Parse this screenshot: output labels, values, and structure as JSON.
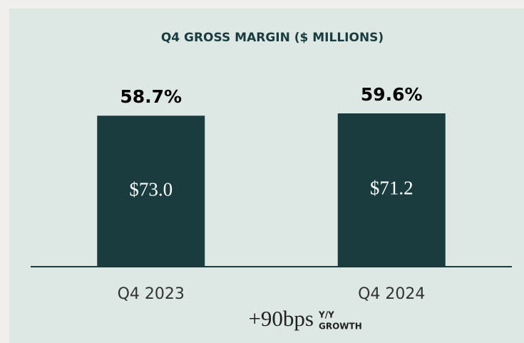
{
  "chart_data": {
    "type": "bar",
    "title": "Q4 GROSS MARGIN ($ MILLIONS)",
    "categories": [
      "Q4 2023",
      "Q4 2024"
    ],
    "values": [
      58.7,
      59.6
    ],
    "value_labels": [
      "58.7%",
      "59.6%"
    ],
    "amount_labels": [
      "$73.0",
      "$71.2"
    ],
    "color": "#1a3c3e",
    "annotation": "+90bps",
    "annotation_label": [
      "Y/Y",
      "GROWTH"
    ]
  }
}
